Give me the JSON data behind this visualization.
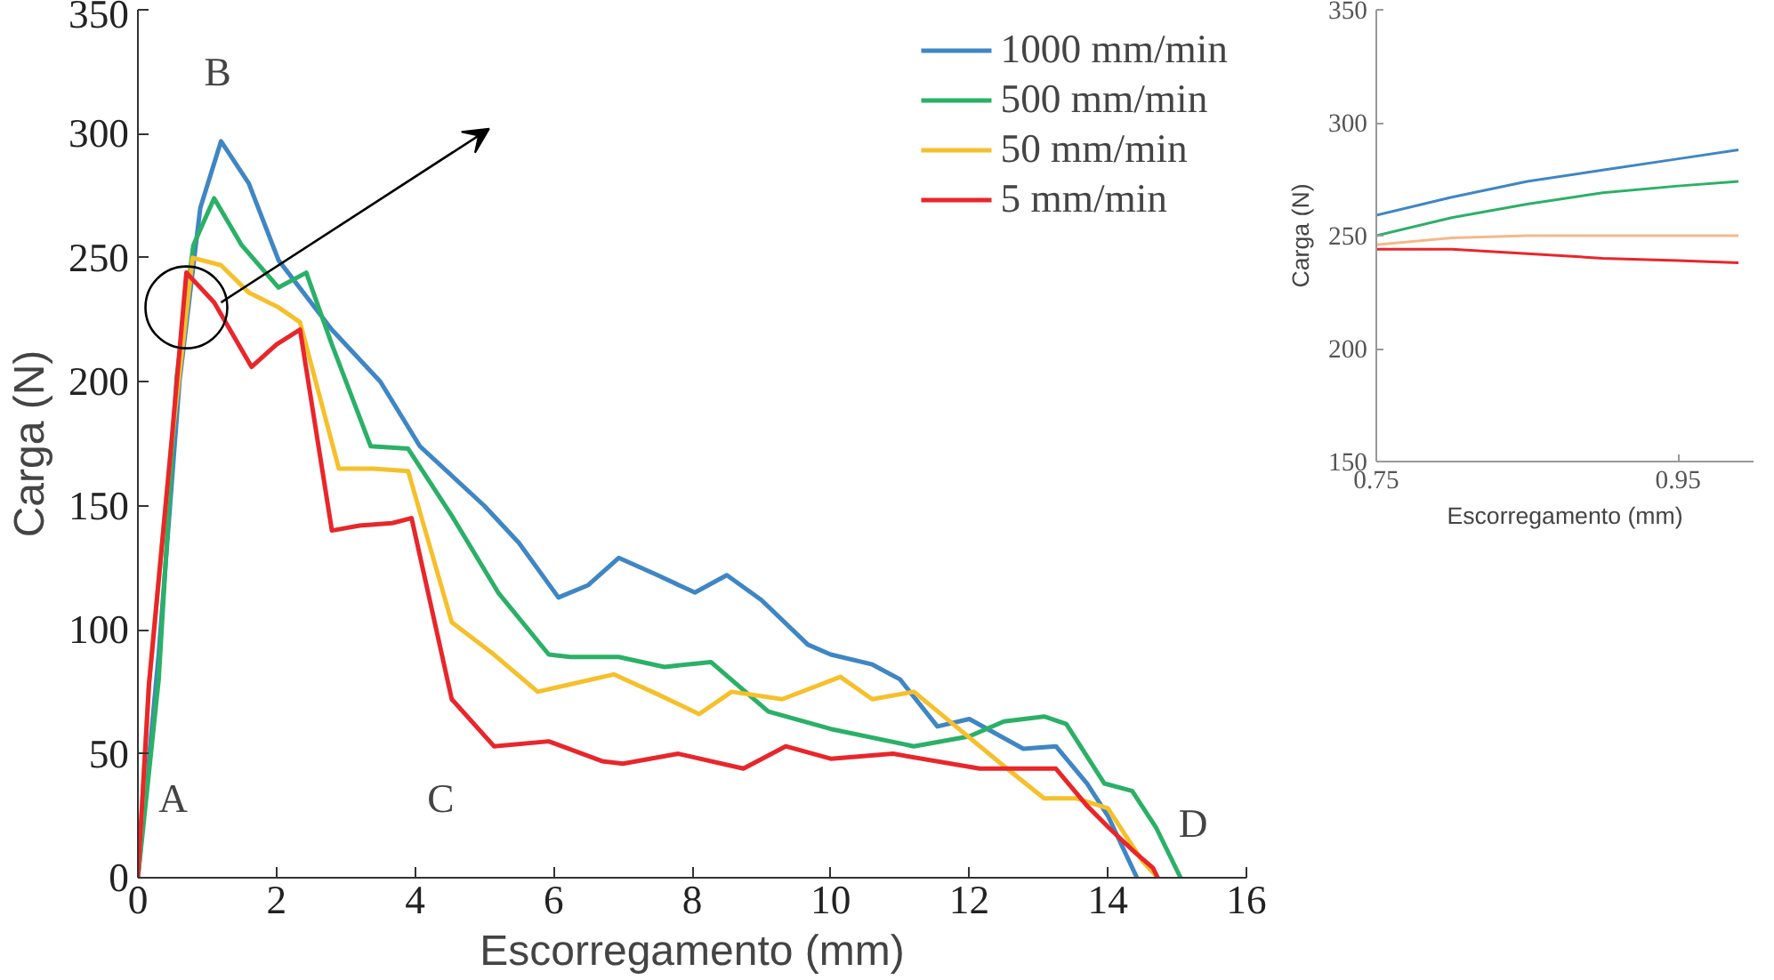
{
  "chart_data": [
    {
      "type": "line",
      "xlabel": "Escorregamento (mm)",
      "ylabel": "Carga (N)",
      "xlim": [
        0,
        16
      ],
      "xticks": [
        0,
        2,
        4,
        6,
        8,
        10,
        12,
        14,
        16
      ],
      "ylim": [
        0,
        350
      ],
      "yticks": [
        0,
        50,
        100,
        150,
        200,
        250,
        300,
        350
      ],
      "grid": false,
      "legend": "top right",
      "annotations": [
        "A",
        "B",
        "C",
        "D"
      ],
      "series": [
        {
          "name": "1000 mm/min",
          "color": "#3f86c4",
          "x": [
            0,
            0.3,
            0.6,
            0.9,
            1.2,
            1.6,
            2.03,
            2.8,
            3.5,
            4.07,
            5.0,
            5.5,
            6.07,
            6.5,
            6.94,
            7.5,
            8.04,
            8.5,
            9.0,
            9.67,
            10.0,
            10.6,
            11.0,
            11.54,
            12.0,
            12.78,
            13.25,
            13.7,
            14.0,
            14.42
          ],
          "values": [
            0,
            90,
            200,
            270,
            297,
            280,
            249,
            221,
            200,
            174,
            150,
            135,
            113,
            118,
            129,
            122,
            115,
            122,
            112,
            94,
            90,
            86,
            80,
            61,
            64,
            52,
            53,
            38,
            25,
            0
          ]
        },
        {
          "name": "500 mm/min",
          "color": "#2bb067",
          "x": [
            0,
            0.3,
            0.56,
            0.8,
            1.1,
            1.5,
            2.03,
            2.43,
            2.8,
            3.36,
            3.9,
            4.53,
            5.2,
            5.93,
            6.24,
            6.94,
            7.6,
            8.27,
            9.1,
            10.0,
            11.2,
            12.0,
            12.5,
            13.08,
            13.4,
            13.95,
            14.35,
            14.7,
            15.05
          ],
          "values": [
            0,
            80,
            202,
            255,
            274,
            255,
            238,
            244,
            215,
            174,
            173,
            146,
            115,
            90,
            89,
            89,
            85,
            87,
            67,
            60,
            53,
            57,
            63,
            65,
            62,
            38,
            35,
            20,
            0
          ]
        },
        {
          "name": "50 mm/min",
          "color": "#f5c02c",
          "x": [
            0,
            0.16,
            0.47,
            0.79,
            1.2,
            1.6,
            2.03,
            2.34,
            2.9,
            3.4,
            3.9,
            4.53,
            5.14,
            5.77,
            6.24,
            6.87,
            7.5,
            8.1,
            8.57,
            9.3,
            10.14,
            10.6,
            11.2,
            11.85,
            12.5,
            13.08,
            13.55,
            14.0,
            14.49,
            14.72
          ],
          "values": [
            0,
            78,
            171,
            250,
            247,
            236,
            230,
            224,
            165,
            165,
            164,
            103,
            90,
            75,
            78,
            82,
            74,
            66,
            75,
            72,
            81,
            72,
            75,
            60,
            45,
            32,
            32,
            28,
            7,
            0
          ]
        },
        {
          "name": "5 mm/min",
          "color": "#e8262b",
          "x": [
            0,
            0.16,
            0.47,
            0.7,
            1.1,
            1.64,
            2.0,
            2.34,
            2.8,
            3.2,
            3.67,
            3.95,
            4.53,
            5.14,
            5.93,
            6.7,
            7.0,
            7.8,
            8.74,
            9.35,
            10.0,
            10.9,
            12.15,
            13.25,
            13.7,
            14.02,
            14.4,
            14.65,
            14.72
          ],
          "values": [
            0,
            78,
            171,
            244,
            232,
            206,
            215,
            221,
            140,
            142,
            143,
            145,
            72,
            53,
            55,
            47,
            46,
            50,
            44,
            53,
            48,
            50,
            44,
            44,
            29,
            20,
            10,
            4,
            0
          ]
        }
      ]
    },
    {
      "type": "line",
      "xlabel": "Escorregamento (mm)",
      "ylabel": "Carga (N)",
      "xlim": [
        0.75,
        1.0
      ],
      "xticks": [
        0.75,
        0.95
      ],
      "ylim": [
        150,
        350
      ],
      "yticks": [
        150,
        200,
        250,
        300,
        350
      ],
      "grid": false,
      "series": [
        {
          "color": "#3f86c4",
          "x": [
            0.75,
            0.8,
            0.85,
            0.9,
            0.95,
            0.99
          ],
          "values": [
            259,
            267,
            274,
            279,
            284,
            288
          ]
        },
        {
          "color": "#2bb067",
          "x": [
            0.75,
            0.8,
            0.85,
            0.9,
            0.95,
            0.99
          ],
          "values": [
            250,
            258,
            264,
            269,
            272,
            274
          ]
        },
        {
          "color": "#f5b88a",
          "x": [
            0.75,
            0.8,
            0.85,
            0.9,
            0.95,
            0.99
          ],
          "values": [
            246,
            249,
            250,
            250,
            250,
            250
          ]
        },
        {
          "color": "#e8262b",
          "x": [
            0.75,
            0.8,
            0.85,
            0.9,
            0.95,
            0.99
          ],
          "values": [
            244,
            244,
            242,
            240,
            239,
            238
          ]
        }
      ]
    }
  ]
}
